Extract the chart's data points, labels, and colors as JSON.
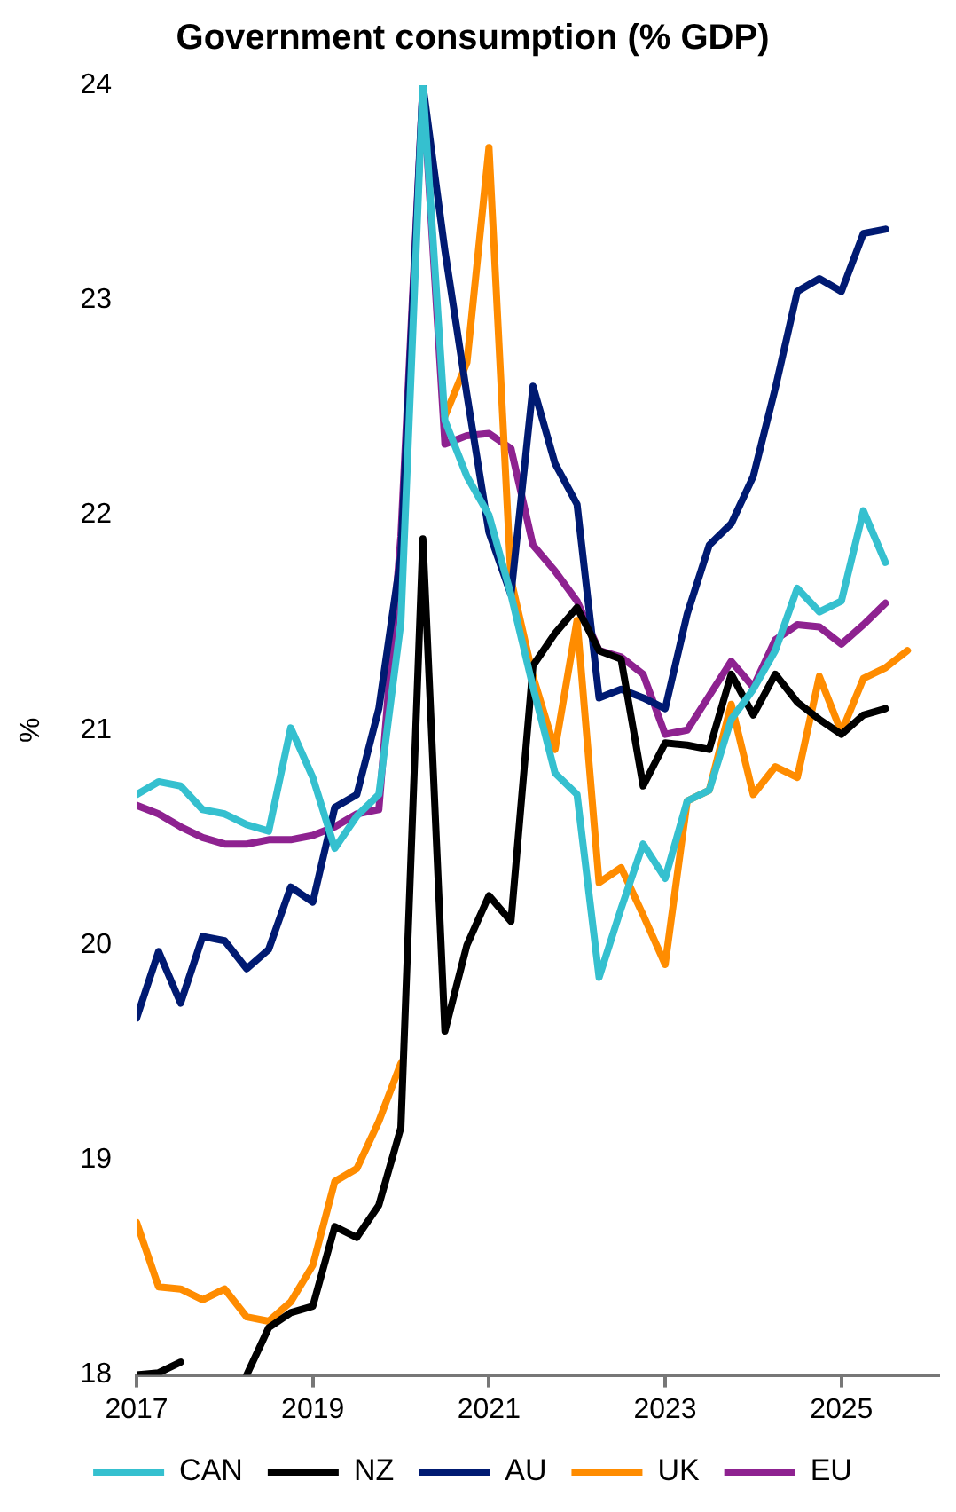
{
  "chart_data": {
    "type": "line",
    "title": "Government consumption (% GDP)",
    "ylabel": "%",
    "x": [
      2017,
      2017.25,
      2017.5,
      2017.75,
      2018,
      2018.25,
      2018.5,
      2018.75,
      2019,
      2019.25,
      2019.5,
      2019.75,
      2020,
      2020.25,
      2020.5,
      2020.75,
      2021,
      2021.25,
      2021.5,
      2021.75,
      2022,
      2022.25,
      2022.5,
      2022.75,
      2023,
      2023.25,
      2023.5,
      2023.75,
      2024,
      2024.25,
      2024.5,
      2024.75,
      2025,
      2025.25,
      2025.5,
      2025.75
    ],
    "series": [
      {
        "name": "CAN",
        "color": "#35c0cf",
        "values": [
          20.7,
          20.76,
          20.74,
          20.63,
          20.61,
          20.56,
          20.53,
          21.01,
          20.78,
          20.45,
          20.6,
          20.7,
          21.5,
          24,
          22.44,
          22.18,
          22.0,
          21.63,
          21.2,
          20.8,
          20.7,
          19.85,
          20.17,
          20.47,
          20.31,
          20.67,
          20.72,
          21.05,
          21.19,
          21.37,
          21.66,
          21.55,
          21.6,
          22.02,
          21.78,
          null
        ]
      },
      {
        "name": "NZ",
        "color": "#000000",
        "values": [
          18.0,
          18.01,
          18.06,
          null,
          null,
          18.0,
          18.22,
          18.29,
          18.32,
          18.69,
          18.64,
          18.79,
          19.15,
          21.89,
          19.6,
          20.0,
          20.23,
          20.11,
          21.3,
          21.45,
          21.57,
          21.37,
          21.33,
          20.74,
          20.94,
          20.93,
          20.91,
          21.26,
          21.07,
          21.26,
          21.13,
          21.05,
          20.98,
          21.07,
          21.1,
          null
        ]
      },
      {
        "name": "AU",
        "color": "#001a72",
        "values": [
          19.66,
          19.97,
          19.73,
          20.04,
          20.02,
          19.89,
          19.98,
          20.27,
          20.2,
          20.64,
          20.7,
          21.1,
          21.81,
          24,
          23.23,
          22.56,
          21.92,
          21.63,
          22.6,
          22.24,
          22.05,
          21.15,
          21.19,
          21.15,
          21.1,
          21.54,
          21.86,
          21.96,
          22.18,
          22.59,
          23.04,
          23.1,
          23.04,
          23.31,
          23.33,
          null
        ]
      },
      {
        "name": "UK",
        "color": "#ff8c00",
        "values": [
          18.71,
          18.41,
          18.4,
          18.35,
          18.4,
          18.27,
          18.25,
          18.34,
          18.51,
          18.9,
          18.96,
          19.18,
          19.45,
          null,
          22.46,
          22.71,
          23.71,
          21.7,
          21.25,
          20.91,
          21.51,
          20.29,
          20.36,
          20.14,
          19.91,
          20.67,
          20.72,
          21.12,
          20.7,
          20.83,
          20.78,
          21.25,
          20.99,
          21.24,
          21.29,
          21.37
        ]
      },
      {
        "name": "EU",
        "color": "#8e2290",
        "values": [
          20.65,
          20.61,
          20.55,
          20.5,
          20.47,
          20.47,
          20.49,
          20.49,
          20.51,
          20.55,
          20.61,
          20.63,
          21.9,
          24,
          22.33,
          22.37,
          22.38,
          22.31,
          21.86,
          21.74,
          21.6,
          21.37,
          21.34,
          21.26,
          20.98,
          21.0,
          21.16,
          21.32,
          21.2,
          21.42,
          21.49,
          21.48,
          21.4,
          21.49,
          21.59,
          null
        ]
      }
    ],
    "xlim": [
      2017,
      2026.1
    ],
    "xticks": [
      2017,
      2019,
      2021,
      2023,
      2025
    ],
    "ylim": [
      18,
      24
    ],
    "yticks": [
      18,
      19,
      20,
      21,
      22,
      23,
      24
    ],
    "grid": false,
    "legend": "bottom",
    "marker": "none",
    "line_style": "solid"
  }
}
